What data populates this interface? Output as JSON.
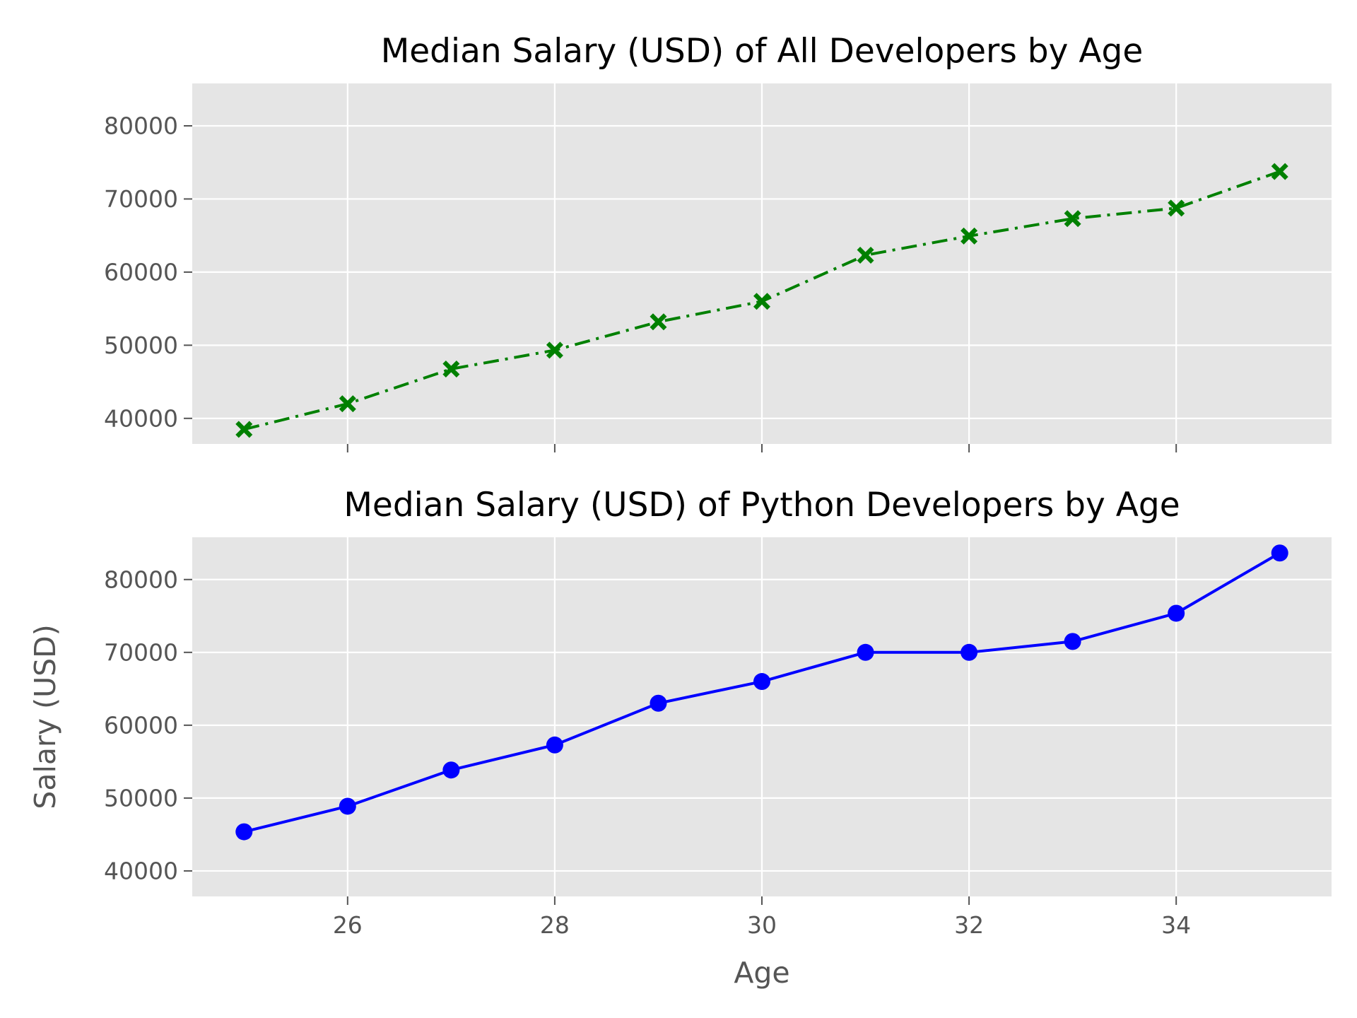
{
  "chart_data": [
    {
      "type": "line",
      "title": "Median Salary (USD) of All Developers by Age",
      "xlabel": "",
      "ylabel": "",
      "xlim": [
        24.5,
        35.5
      ],
      "ylim": [
        36500,
        85800
      ],
      "x_ticks": [
        26,
        28,
        30,
        32,
        34
      ],
      "x_tick_labels_visible": false,
      "y_ticks": [
        40000,
        50000,
        60000,
        70000,
        80000
      ],
      "y_tick_labels": [
        "40000",
        "50000",
        "60000",
        "70000",
        "80000"
      ],
      "grid": true,
      "style": "ggplot",
      "series": [
        {
          "color": "#008000",
          "line_style": "dash-dot",
          "marker": "X",
          "x": [
            25,
            26,
            27,
            28,
            29,
            30,
            31,
            32,
            33,
            34,
            35
          ],
          "y": [
            38496,
            42000,
            46752,
            49320,
            53200,
            56000,
            62316,
            64928,
            67317,
            68748,
            73752
          ]
        }
      ]
    },
    {
      "type": "line",
      "title": "Median Salary (USD) of Python Developers by Age",
      "xlabel": "Age",
      "ylabel": "Salary (USD)",
      "xlim": [
        24.5,
        35.5
      ],
      "ylim": [
        36500,
        85800
      ],
      "x_ticks": [
        26,
        28,
        30,
        32,
        34
      ],
      "x_tick_labels": [
        "26",
        "28",
        "30",
        "32",
        "34"
      ],
      "y_ticks": [
        40000,
        50000,
        60000,
        70000,
        80000
      ],
      "y_tick_labels": [
        "40000",
        "50000",
        "60000",
        "70000",
        "80000"
      ],
      "grid": true,
      "style": "ggplot",
      "series": [
        {
          "color": "#0000ff",
          "line_style": "solid",
          "marker": "o",
          "x": [
            25,
            26,
            27,
            28,
            29,
            30,
            31,
            32,
            33,
            34,
            35
          ],
          "y": [
            45372,
            48876,
            53850,
            57287,
            63016,
            65998,
            70003,
            70000,
            71496,
            75370,
            83640
          ]
        }
      ]
    }
  ]
}
